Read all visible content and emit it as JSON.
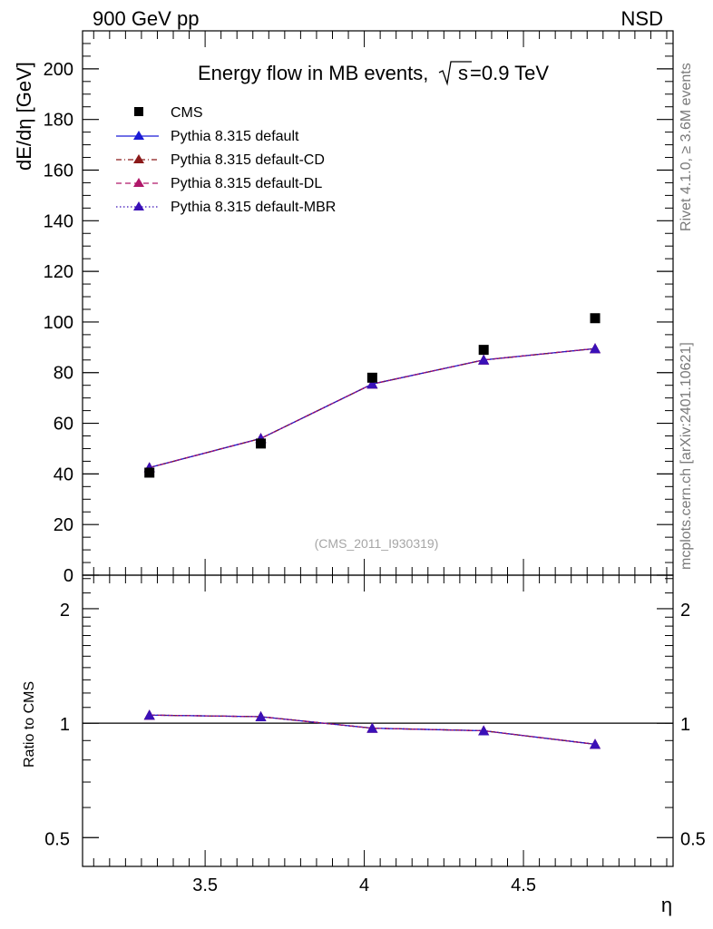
{
  "header": {
    "left": "900 GeV pp",
    "right": "NSD"
  },
  "side_labels": {
    "rivet": "Rivet 4.1.0, ≥ 3.6M events",
    "mcplots": "mcplots.cern.ch [arXiv:2401.10621]"
  },
  "colors": {
    "cms": "#000000",
    "default": "#1a1ad6",
    "cd": "#8b1a1a",
    "dl": "#b0186a",
    "mbr": "#3a10b8",
    "ref_text": "#a6a6a6",
    "side_text": "#7a7a7a"
  },
  "chart_data": [
    {
      "type": "scatter",
      "title": "Energy flow in MB events,",
      "title_sqrt": "s",
      "title_suffix": "=0.9 TeV",
      "ylabel": "dE/dη [GeV]",
      "reference": "(CMS_2011_I930319)",
      "xlim": [
        3.115,
        4.97
      ],
      "ylim": [
        0,
        215
      ],
      "yticks": [
        0,
        20,
        40,
        60,
        80,
        100,
        120,
        140,
        160,
        180,
        200
      ],
      "ytick_labels": [
        "0",
        "20",
        "40",
        "60",
        "80",
        "100",
        "120",
        "140",
        "160",
        "180",
        "200"
      ],
      "x": [
        3.325,
        3.675,
        4.025,
        4.375,
        4.725
      ],
      "series": [
        {
          "name": "CMS",
          "style": "marker-square",
          "values": [
            40.5,
            52.0,
            78.0,
            89.0,
            101.5
          ]
        },
        {
          "name": "Pythia 8.315 default",
          "style": "solid",
          "values": [
            42.5,
            54.0,
            75.5,
            85.0,
            89.5
          ]
        },
        {
          "name": "Pythia 8.315 default-CD",
          "style": "dashdot",
          "values": [
            42.5,
            54.0,
            75.5,
            85.0,
            89.5
          ]
        },
        {
          "name": "Pythia 8.315 default-DL",
          "style": "dashed",
          "values": [
            42.5,
            54.0,
            75.5,
            85.0,
            89.5
          ]
        },
        {
          "name": "Pythia 8.315 default-MBR",
          "style": "dotted",
          "values": [
            42.5,
            54.0,
            75.5,
            85.0,
            89.5
          ]
        }
      ]
    },
    {
      "type": "line",
      "ylabel": "Ratio to CMS",
      "xlabel": "η",
      "xlim": [
        3.115,
        4.97
      ],
      "ylim": [
        0.42,
        2.45
      ],
      "yscale": "log",
      "yticks": [
        0.5,
        1,
        2
      ],
      "ytick_labels": [
        "0.5",
        "1",
        "2"
      ],
      "reference_line": 1,
      "xticks": [
        3.5,
        4,
        4.5
      ],
      "xtick_labels": [
        "3.5",
        "4",
        "4.5"
      ],
      "x": [
        3.325,
        3.675,
        4.025,
        4.375,
        4.725
      ],
      "series": [
        {
          "name": "Pythia 8.315 default",
          "values": [
            1.05,
            1.04,
            0.97,
            0.955,
            0.88
          ]
        },
        {
          "name": "Pythia 8.315 default-CD",
          "values": [
            1.05,
            1.04,
            0.97,
            0.955,
            0.88
          ]
        },
        {
          "name": "Pythia 8.315 default-DL",
          "values": [
            1.05,
            1.04,
            0.97,
            0.955,
            0.88
          ]
        },
        {
          "name": "Pythia 8.315 default-MBR",
          "values": [
            1.05,
            1.04,
            0.97,
            0.955,
            0.88
          ]
        }
      ]
    }
  ]
}
